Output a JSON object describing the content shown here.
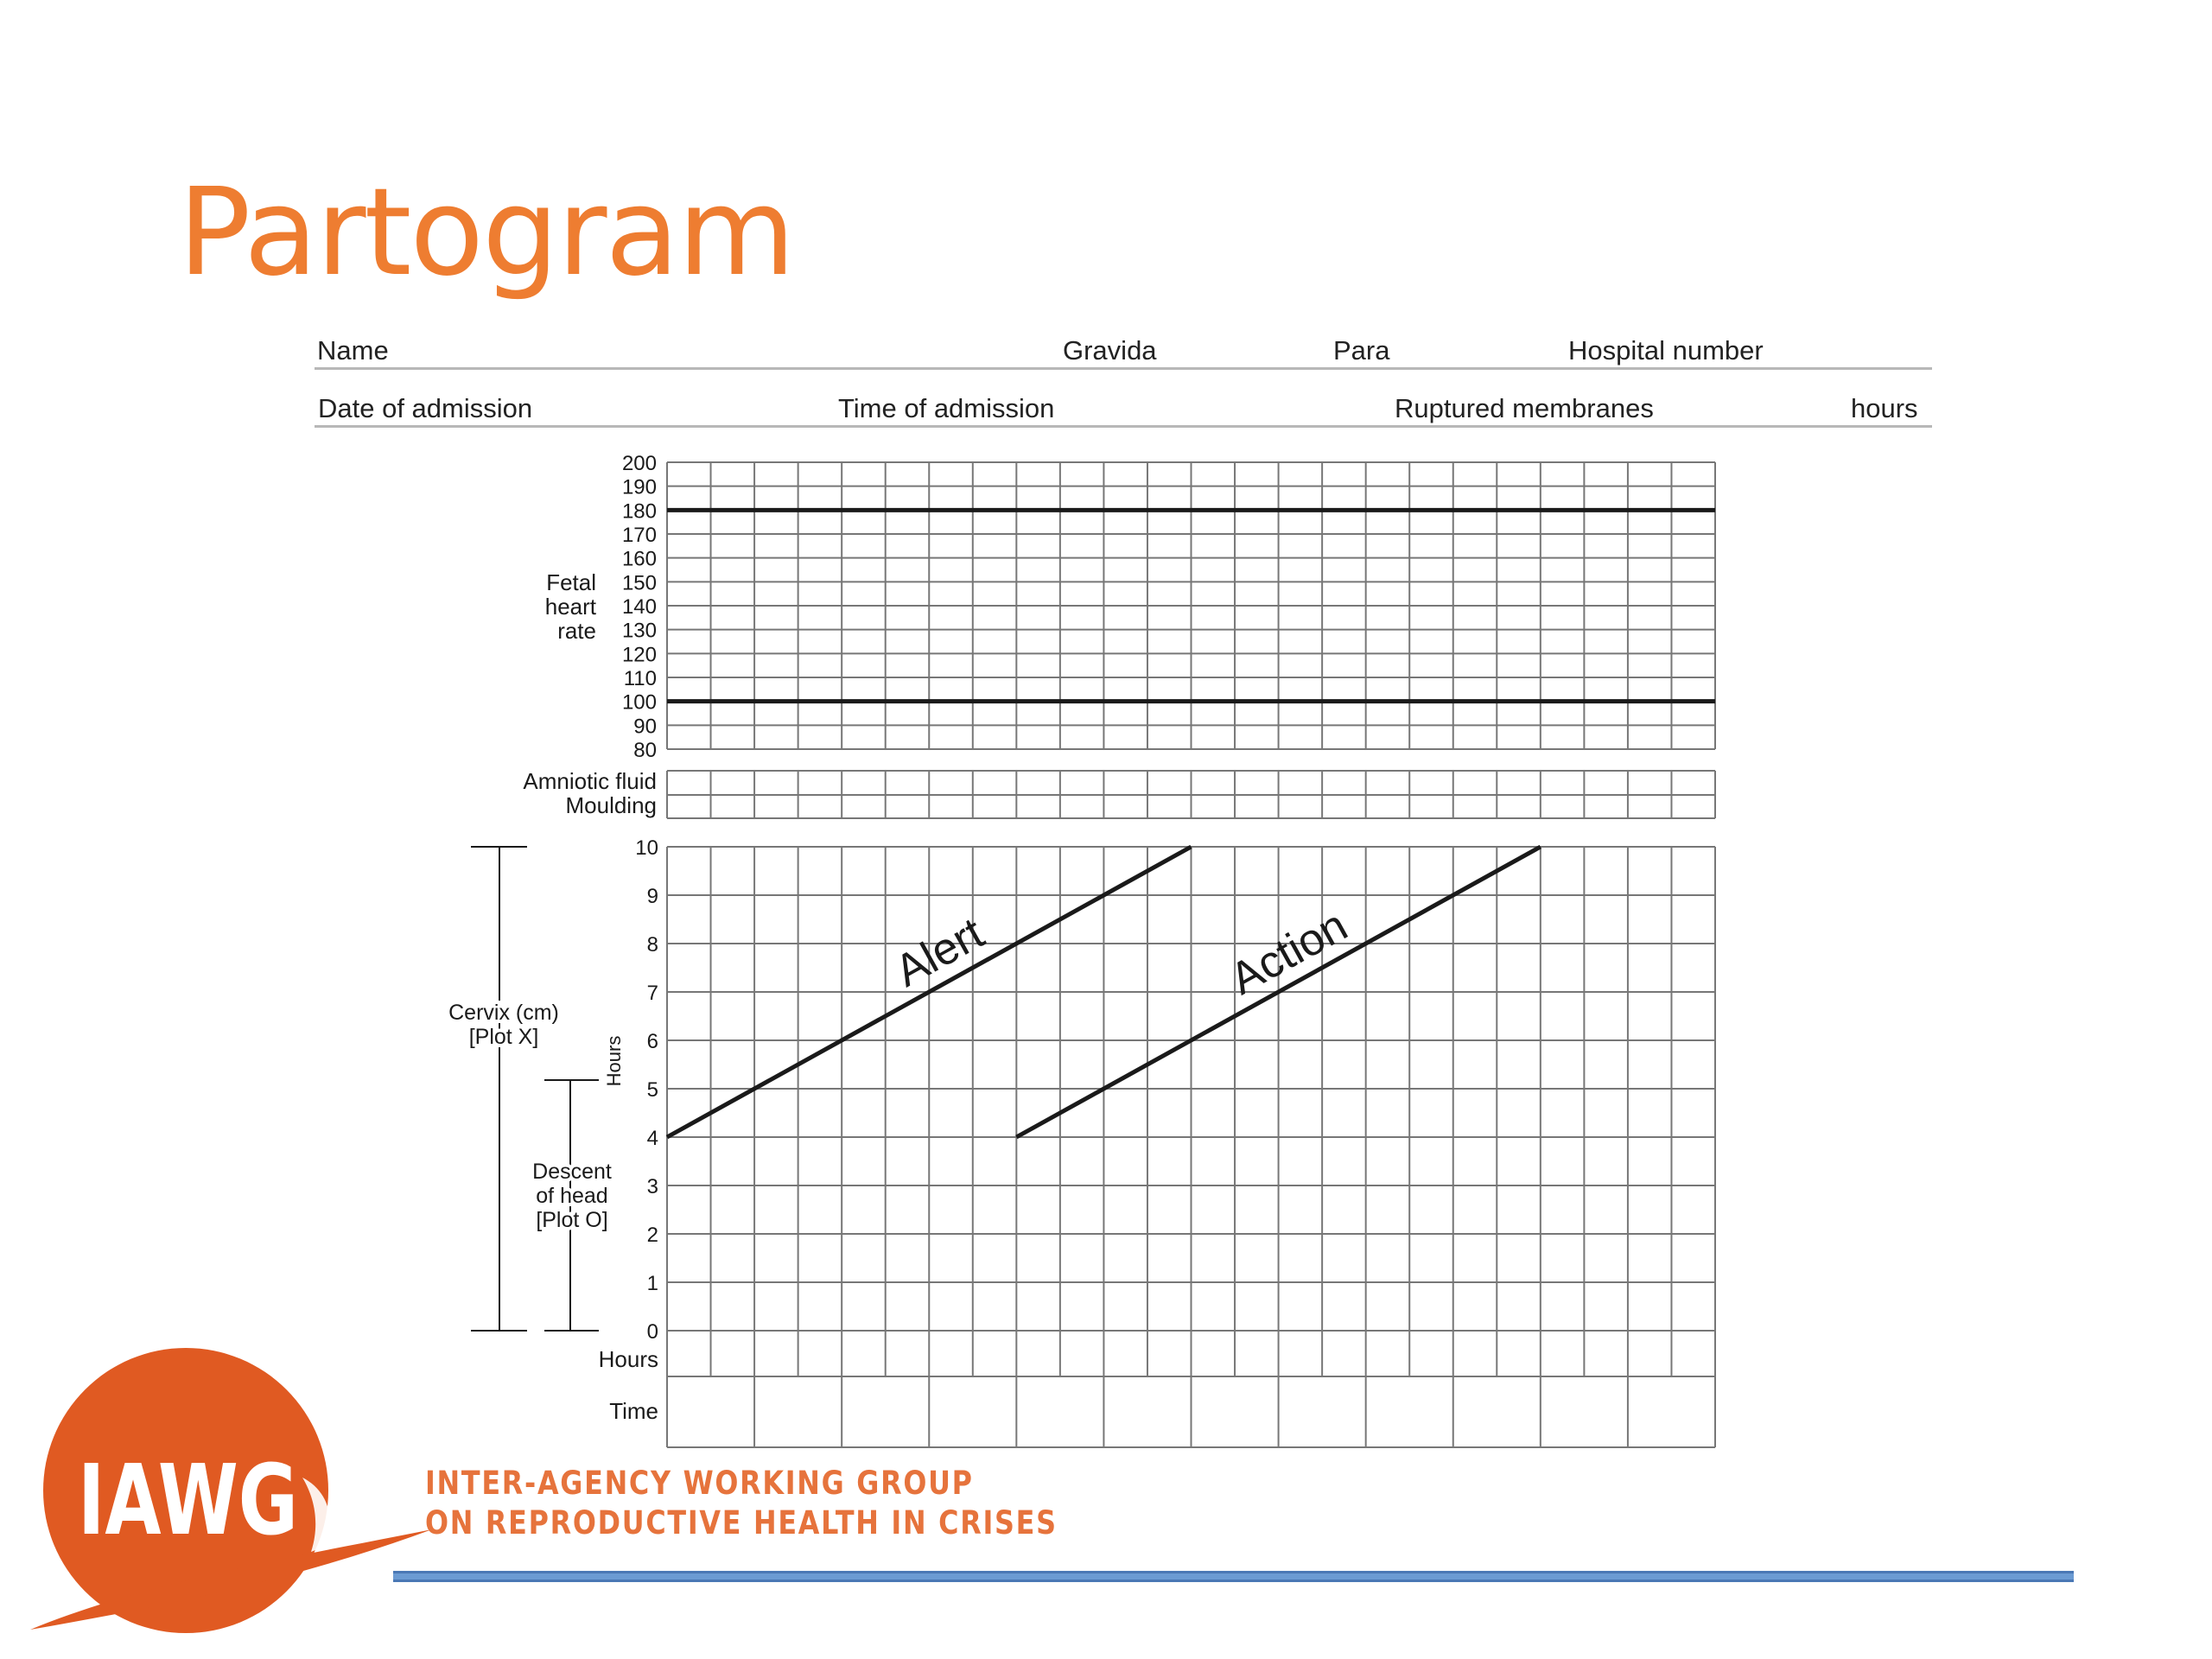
{
  "slide": {
    "title": "Partogram"
  },
  "form": {
    "row1": {
      "name": "Name",
      "gravida": "Gravida",
      "para": "Para",
      "hospital_number": "Hospital number"
    },
    "row2": {
      "date_of_admission": "Date of admission",
      "time_of_admission": "Time of admission",
      "ruptured_membranes": "Ruptured membranes",
      "hours": "hours"
    }
  },
  "chart_data": {
    "type": "table",
    "fetal_heart_rate": {
      "label_lines": [
        "Fetal",
        "heart",
        "rate"
      ],
      "y_ticks": [
        200,
        190,
        180,
        170,
        160,
        150,
        140,
        130,
        120,
        110,
        100,
        90,
        80
      ],
      "reference_lines": [
        180,
        100
      ]
    },
    "fluid_rows": [
      "Amniotic fluid",
      "Moulding"
    ],
    "cervix": {
      "label_lines": [
        "Cervix (cm)",
        "[Plot X]"
      ],
      "hours_label": "Hours",
      "y_ticks": [
        10,
        9,
        8,
        7,
        6,
        5,
        4,
        3,
        2,
        1,
        0
      ],
      "alert_line": {
        "label": "Alert",
        "from": [
          0,
          4
        ],
        "to": [
          6,
          10
        ]
      },
      "action_line": {
        "label": "Action",
        "from": [
          4,
          4
        ],
        "to": [
          10,
          10
        ]
      }
    },
    "descent": {
      "label_lines": [
        "Descent",
        "of head",
        "[Plot O]"
      ]
    },
    "bottom_rows": [
      "Hours",
      "Time"
    ],
    "colors": {
      "grid": "#777777",
      "ink": "#1a1a1a",
      "title": "#ee7d31"
    }
  },
  "logo": {
    "acronym": "IAWG",
    "line1": "INTER-AGENCY WORKING GROUP",
    "line2": "ON REPRODUCTIVE HEALTH IN CRISES",
    "color": "#e05a22",
    "text_color": "#e6733c"
  },
  "footer": {
    "rule_color": "#6b9bd3"
  }
}
